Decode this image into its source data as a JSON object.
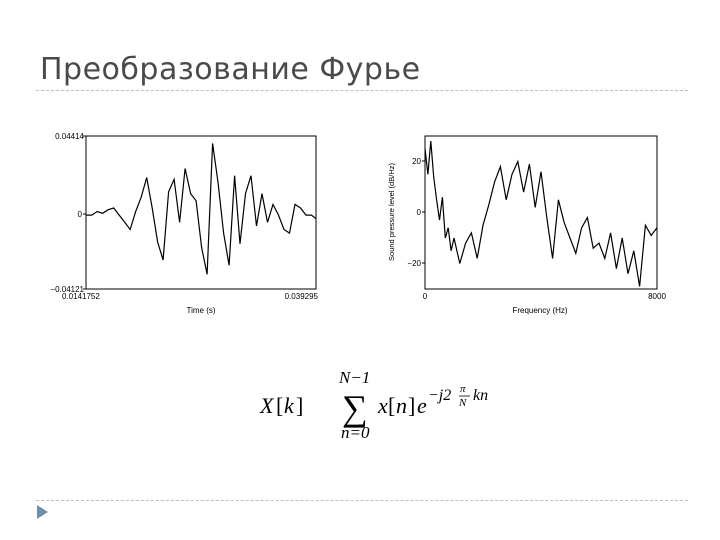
{
  "slide": {
    "title": "Преобразование Фурье"
  },
  "chart_data": [
    {
      "type": "line",
      "xlabel": "Time (s)",
      "ylabel": "",
      "xlim": [
        0.0141752,
        0.039295
      ],
      "ylim": [
        -0.04121,
        0.04414
      ],
      "x_tick_labels": [
        "0.0141752",
        "0.039295"
      ],
      "y_tick_labels": [
        "0.04414",
        "0",
        "−0.04121"
      ],
      "grid": false,
      "series": [
        {
          "color": "#000000",
          "x": [
            0.0142,
            0.0148,
            0.0154,
            0.016,
            0.0166,
            0.0172,
            0.0178,
            0.0184,
            0.019,
            0.0196,
            0.0202,
            0.0208,
            0.0214,
            0.022,
            0.0226,
            0.0232,
            0.0238,
            0.0244,
            0.025,
            0.0256,
            0.0262,
            0.0268,
            0.0274,
            0.028,
            0.0286,
            0.0292,
            0.0298,
            0.0304,
            0.031,
            0.0316,
            0.0322,
            0.0328,
            0.0334,
            0.034,
            0.0346,
            0.0352,
            0.0358,
            0.0364,
            0.037,
            0.0376,
            0.0382,
            0.0388,
            0.0393
          ],
          "y": [
            0.0,
            0.0,
            0.002,
            0.001,
            0.003,
            0.004,
            0.0,
            -0.004,
            -0.008,
            0.002,
            0.01,
            0.021,
            0.004,
            -0.015,
            -0.025,
            0.013,
            0.02,
            -0.004,
            0.026,
            0.012,
            0.008,
            -0.018,
            -0.033,
            0.04,
            0.018,
            -0.01,
            -0.028,
            0.022,
            -0.016,
            0.012,
            0.022,
            -0.006,
            0.012,
            -0.004,
            0.006,
            0.0,
            -0.008,
            -0.01,
            0.006,
            0.004,
            0.0,
            0.0,
            -0.002
          ]
        }
      ]
    },
    {
      "type": "line",
      "xlabel": "Frequency (Hz)",
      "ylabel": "Sound pressure level (dB/Hz)",
      "xlim": [
        0,
        8000
      ],
      "ylim": [
        -30,
        30
      ],
      "x_tick_labels": [
        "0",
        "8000"
      ],
      "y_tick_labels": [
        "20",
        "0",
        "−20"
      ],
      "grid": false,
      "series": [
        {
          "color": "#000000",
          "x": [
            0,
            100,
            200,
            300,
            400,
            500,
            600,
            700,
            800,
            900,
            1000,
            1200,
            1400,
            1600,
            1800,
            2000,
            2200,
            2400,
            2600,
            2800,
            3000,
            3200,
            3400,
            3600,
            3800,
            4000,
            4200,
            4400,
            4600,
            4800,
            5000,
            5200,
            5400,
            5600,
            5800,
            6000,
            6200,
            6400,
            6600,
            6800,
            7000,
            7200,
            7400,
            7600,
            7800,
            8000
          ],
          "y": [
            25,
            15,
            28,
            14,
            5,
            -3,
            6,
            -10,
            -6,
            -15,
            -10,
            -20,
            -12,
            -8,
            -18,
            -5,
            3,
            12,
            18,
            5,
            15,
            20,
            8,
            19,
            2,
            16,
            -2,
            -18,
            5,
            -4,
            -10,
            -16,
            -6,
            -2,
            -14,
            -12,
            -18,
            -8,
            -22,
            -10,
            -24,
            -15,
            -29,
            -5,
            -9,
            -6
          ]
        }
      ]
    }
  ],
  "formula": {
    "lhs_X": "X",
    "lhs_k": "k",
    "sum_upper": "N−1",
    "sum_symbol": "∑",
    "sum_lower": "n=0",
    "x_sym": "x",
    "n_sym": "n",
    "e_sym": "e",
    "exponent": "−j2",
    "exp_pi": "π",
    "exp_N": "N",
    "exp_kn": "kn"
  }
}
